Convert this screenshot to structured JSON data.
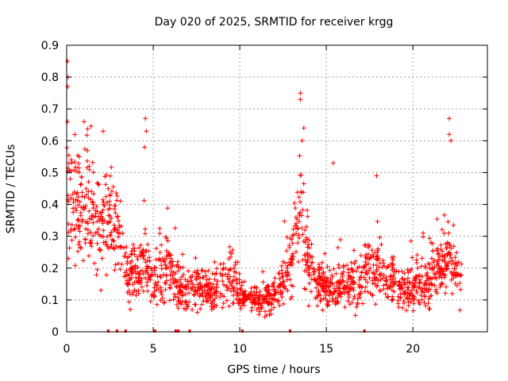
{
  "chart_data": {
    "type": "scatter",
    "title": "Day 020 of 2025, SRMTID for receiver krgg",
    "xlabel": "GPS time / hours",
    "ylabel": "SRMTID / TECUs",
    "xlim": [
      0,
      24.3
    ],
    "ylim": [
      0,
      0.9
    ],
    "x_ticks": [
      0,
      5,
      10,
      15,
      20
    ],
    "x_tick_labels": [
      "0",
      "5",
      "10",
      "15",
      "20"
    ],
    "y_ticks": [
      0,
      0.1,
      0.2,
      0.3,
      0.4,
      0.5,
      0.6,
      0.7,
      0.8,
      0.9
    ],
    "y_tick_labels": [
      "0",
      "0.1",
      "0.2",
      "0.3",
      "0.4",
      "0.5",
      "0.6",
      "0.7",
      "0.8",
      "0.9"
    ],
    "grid": true,
    "marker": "plus",
    "series_color": "#ff0000",
    "trend": {
      "x": [
        0,
        0.5,
        1,
        1.5,
        2,
        2.5,
        3,
        3.5,
        4,
        4.5,
        5,
        5.5,
        6,
        6.5,
        7,
        7.5,
        8,
        8.5,
        9,
        9.5,
        10,
        10.5,
        11,
        11.5,
        12,
        12.5,
        13,
        13.5,
        14,
        14.5,
        15,
        15.5,
        16,
        16.5,
        17,
        17.5,
        18,
        18.5,
        19,
        19.5,
        20,
        20.5,
        21,
        21.5,
        22,
        22.5,
        22.8
      ],
      "y": [
        0.45,
        0.4,
        0.35,
        0.37,
        0.33,
        0.38,
        0.3,
        0.2,
        0.18,
        0.22,
        0.16,
        0.18,
        0.2,
        0.14,
        0.12,
        0.14,
        0.12,
        0.13,
        0.15,
        0.18,
        0.12,
        0.11,
        0.1,
        0.1,
        0.12,
        0.15,
        0.22,
        0.4,
        0.2,
        0.15,
        0.14,
        0.13,
        0.15,
        0.15,
        0.16,
        0.2,
        0.2,
        0.16,
        0.15,
        0.14,
        0.13,
        0.15,
        0.18,
        0.2,
        0.22,
        0.18,
        0.15
      ]
    },
    "peaks": [
      {
        "x": 0.05,
        "y": 0.85
      },
      {
        "x": 0.08,
        "y": 0.8
      },
      {
        "x": 0.06,
        "y": 0.77
      },
      {
        "x": 0.05,
        "y": 0.66
      },
      {
        "x": 1.0,
        "y": 0.66
      },
      {
        "x": 2.1,
        "y": 0.63
      },
      {
        "x": 4.55,
        "y": 0.67
      },
      {
        "x": 4.6,
        "y": 0.63
      },
      {
        "x": 4.5,
        "y": 0.58
      },
      {
        "x": 13.5,
        "y": 0.75
      },
      {
        "x": 13.5,
        "y": 0.73
      },
      {
        "x": 13.7,
        "y": 0.64
      },
      {
        "x": 13.6,
        "y": 0.6
      },
      {
        "x": 15.4,
        "y": 0.53
      },
      {
        "x": 17.9,
        "y": 0.49
      },
      {
        "x": 22.1,
        "y": 0.67
      },
      {
        "x": 22.1,
        "y": 0.62
      },
      {
        "x": 22.2,
        "y": 0.6
      }
    ],
    "zero_markers_x": [
      2.4,
      2.9,
      3.4,
      5.1,
      6.3,
      6.45,
      7.1,
      10.15,
      12.9,
      17.2
    ]
  }
}
